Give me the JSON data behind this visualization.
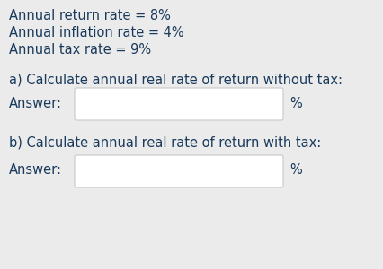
{
  "bg_color": "#ebebeb",
  "text_color": "#1a3a5c",
  "line1": "Annual return rate = 8%",
  "line2": "Annual inflation rate = 4%",
  "line3": "Annual tax rate = 9%",
  "question_a": "a) Calculate annual real rate of return without tax:",
  "question_b": "b) Calculate annual real rate of return with tax:",
  "answer_label": "Answer:",
  "percent_label": "%",
  "box_facecolor": "#ffffff",
  "box_edgecolor": "#c8c8c8",
  "font_size": 10.5
}
